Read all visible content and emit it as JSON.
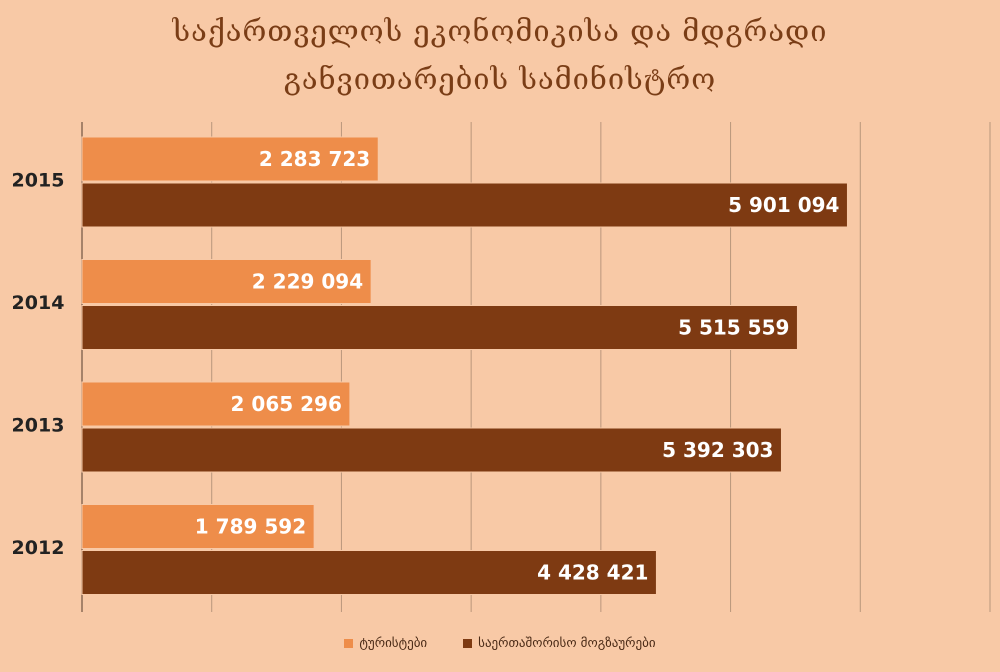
{
  "chart_data": {
    "type": "bar",
    "orientation": "horizontal",
    "title_lines": [
      "საქართველოს ეკონომიკისა და მდგრადი",
      "განვითარების სამინისტრო"
    ],
    "categories": [
      "2015",
      "2014",
      "2013",
      "2012"
    ],
    "series": [
      {
        "name": "ტურისტები",
        "color": "#ee8d4a",
        "values": [
          2283723,
          2229094,
          2065296,
          1789592
        ],
        "labels": [
          "2 283 723",
          "2 229 094",
          "2 065 296",
          "1 789 592"
        ]
      },
      {
        "name": "საერთაშორისო მოგზაურები",
        "color": "#7e3a12",
        "values": [
          5901094,
          5515559,
          5392303,
          4428421
        ],
        "labels": [
          "5 901 094",
          "5 515 559",
          "5 392 303",
          "4 428 421"
        ]
      }
    ],
    "xlim": [
      0,
      7000000
    ],
    "grid": true,
    "legend_position": "bottom"
  }
}
